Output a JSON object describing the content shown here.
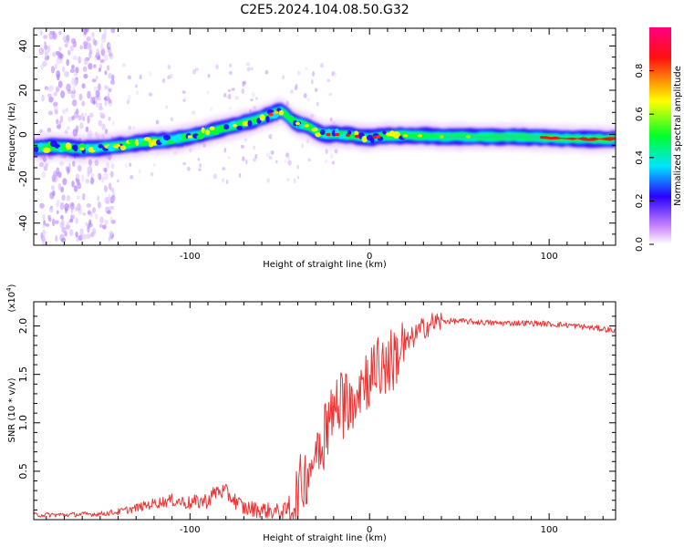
{
  "figure": {
    "title": "C2E5.2024.104.08.50.G32"
  },
  "chart_data": [
    {
      "type": "heatmap",
      "xlabel": "Height of straight line (km)",
      "ylabel": "Frequency (Hz)",
      "xlim": [
        -187,
        137
      ],
      "ylim": [
        -50,
        48
      ],
      "xticks": [
        -100,
        0,
        100
      ],
      "yticks": [
        -40,
        -20,
        0,
        20,
        40
      ],
      "track": {
        "x": [
          -187,
          -175,
          -160,
          -150,
          -140,
          -130,
          -120,
          -110,
          -100,
          -90,
          -80,
          -70,
          -60,
          -52,
          -48,
          -44,
          -40,
          -35,
          -30,
          -25,
          -20,
          -15,
          -10,
          -5,
          0,
          5,
          10,
          20,
          30,
          40,
          60,
          80,
          100,
          120,
          137
        ],
        "y": [
          -6,
          -5.5,
          -6.5,
          -6,
          -5,
          -4,
          -3,
          -2.5,
          -1,
          1,
          3,
          5,
          7.5,
          10,
          11,
          6.5,
          5,
          4,
          1.5,
          0,
          0,
          0,
          -0.5,
          -1,
          -1.5,
          -1,
          -0.5,
          -0.5,
          -0.5,
          -1,
          -1,
          -1,
          -1.5,
          -2,
          -2
        ]
      },
      "colorbar": {
        "label": "Normalized spectral amplitude",
        "ticks": [
          "0.0",
          "0.2",
          "0.4",
          "0.6",
          "0.8"
        ],
        "range": [
          0,
          1
        ],
        "colors": [
          "#ffffff",
          "#cc88ff",
          "#2a00ff",
          "#00e5ff",
          "#00ff2a",
          "#ffff00",
          "#ff1010",
          "#ff0080"
        ]
      }
    },
    {
      "type": "line",
      "xlabel": "Height of straight line (km)",
      "ylabel": "SNR (10 * v/v)",
      "yscale_label": "(x10",
      "yscale_exp": "4",
      "yscale_close": ")",
      "xlim": [
        -187,
        137
      ],
      "ylim": [
        0,
        2.25
      ],
      "xticks": [
        -100,
        0,
        100
      ],
      "yticks": [
        "0.5",
        "1.0",
        "1.5",
        "2.0"
      ],
      "color": "#ee3333",
      "series": [
        {
          "x": [
            -187,
            -170,
            -150,
            -140,
            -130,
            -120,
            -110,
            -100,
            -90,
            -85,
            -80,
            -75,
            -70,
            -60,
            -50,
            -45,
            -40,
            -35,
            -30,
            -28,
            -25,
            -22,
            -20,
            -18,
            -15,
            -10,
            -5,
            0,
            5,
            10,
            15,
            20,
            25,
            30,
            35,
            40,
            50,
            60,
            70,
            80,
            90,
            100,
            110,
            120,
            130,
            137
          ],
          "y": [
            0.05,
            0.05,
            0.06,
            0.08,
            0.12,
            0.17,
            0.2,
            0.17,
            0.2,
            0.3,
            0.28,
            0.2,
            0.12,
            0.1,
            0.08,
            0.1,
            0.25,
            0.5,
            0.7,
            0.8,
            0.95,
            1.0,
            1.1,
            1.2,
            1.2,
            1.3,
            1.4,
            1.5,
            1.55,
            1.6,
            1.7,
            1.8,
            1.9,
            1.98,
            2.03,
            2.05,
            2.05,
            2.04,
            2.03,
            2.03,
            2.03,
            2.02,
            2.01,
            1.99,
            1.97,
            1.95
          ]
        }
      ]
    }
  ]
}
